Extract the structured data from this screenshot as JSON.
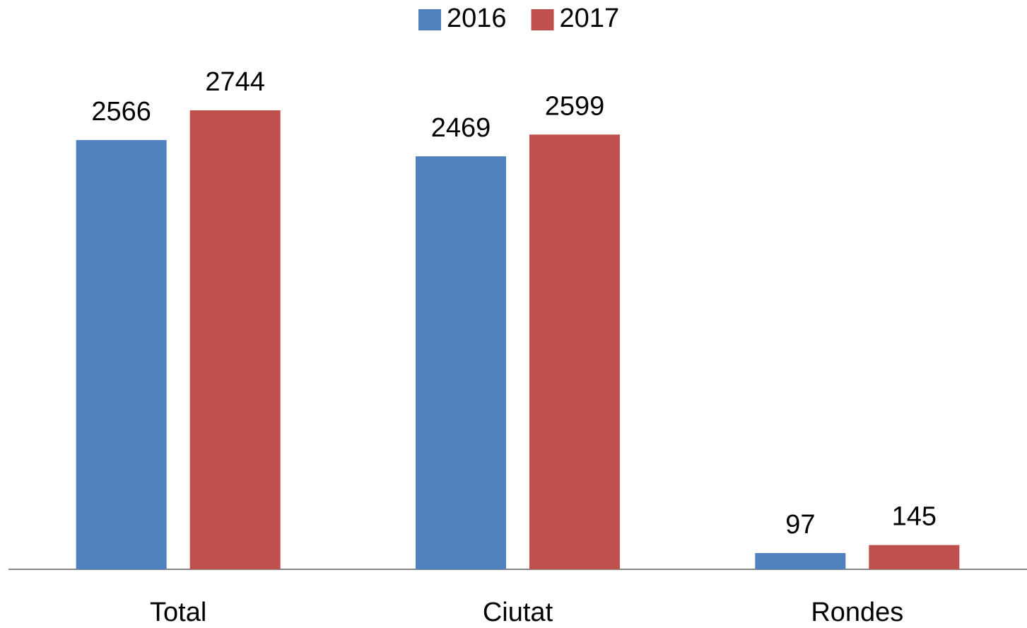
{
  "chart_data": {
    "type": "bar",
    "categories": [
      "Total",
      "Ciutat",
      "Rondes"
    ],
    "series": [
      {
        "name": "2016",
        "color": "#4f81bd",
        "values": [
          2566,
          2469,
          97
        ]
      },
      {
        "name": "2017",
        "color": "#c0504d",
        "values": [
          2744,
          2599,
          145
        ]
      }
    ],
    "legend": "top"
  }
}
